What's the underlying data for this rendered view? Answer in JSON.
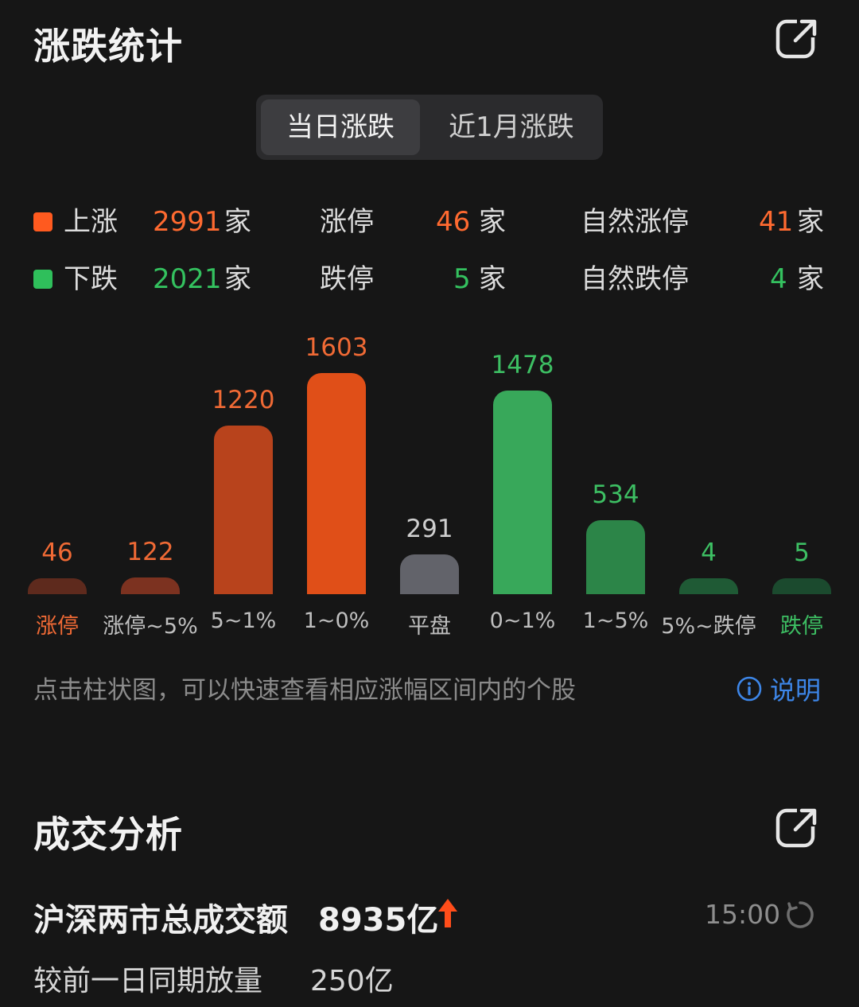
{
  "section1": {
    "title": "涨跌统计",
    "tabs": [
      "当日涨跌",
      "近1月涨跌"
    ]
  },
  "stats": {
    "row1": {
      "dot_color": "#ff5a1f",
      "label": "上涨",
      "count": "2991",
      "unit": "家",
      "label2": "涨停",
      "count2": "46",
      "unit2": "家",
      "label3": "自然涨停",
      "count3": "41",
      "unit3": "家",
      "num_color": "#ff6a30"
    },
    "row2": {
      "dot_color": "#2fbf5b",
      "label": "下跌",
      "count": "2021",
      "unit": "家",
      "label2": "跌停",
      "count2": "5",
      "unit2": "家",
      "label3": "自然跌停",
      "count3": "4",
      "unit3": "家",
      "num_color": "#34c15f"
    }
  },
  "chart_data": {
    "type": "bar",
    "categories": [
      "涨停",
      "涨停~5%",
      "5~1%",
      "1~0%",
      "平盘",
      "0~1%",
      "1~5%",
      "5%~跌停",
      "跌停"
    ],
    "values": [
      46,
      122,
      1220,
      1603,
      291,
      1478,
      534,
      4,
      5
    ],
    "bar_colors": [
      "#5e2a1d",
      "#7c3220",
      "#b8431c",
      "#e04f18",
      "#62636a",
      "#38a85a",
      "#2c8548",
      "#1f5a35",
      "#1b4a2e"
    ],
    "value_colors": [
      "#f06a35",
      "#f06a35",
      "#f06a35",
      "#f06a35",
      "#cfcfcf",
      "#3dbf63",
      "#3dbf63",
      "#3dbf63",
      "#3dbf63"
    ],
    "category_colors": [
      "#f06a35",
      "#bfbfbf",
      "#bfbfbf",
      "#bfbfbf",
      "#bfbfbf",
      "#bfbfbf",
      "#bfbfbf",
      "#bfbfbf",
      "#3dbf63"
    ]
  },
  "hint": {
    "text": "点击柱状图，可以快速查看相应涨幅区间内的个股",
    "explain_label": "说明"
  },
  "section2": {
    "title": "成交分析",
    "turnover_label": "沪深两市总成交额",
    "turnover_value": "8935亿",
    "time": "15:00",
    "compare_label": "较前一日同期放量",
    "compare_value": "250亿"
  }
}
